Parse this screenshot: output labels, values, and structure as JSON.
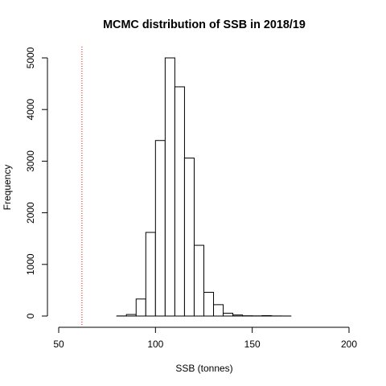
{
  "chart_data": {
    "type": "bar",
    "title": "MCMC distribution of SSB in 2018/19",
    "xlabel": "SSB (tonnes)",
    "ylabel": "Frequency",
    "xlim": [
      50,
      200
    ],
    "ylim": [
      0,
      5000
    ],
    "x_ticks": [
      "50",
      "100",
      "150",
      "200"
    ],
    "y_ticks": [
      "0",
      "1000",
      "2000",
      "3000",
      "4000",
      "5000"
    ],
    "bin_width": 5,
    "bins": [
      {
        "x0": 80,
        "x1": 85,
        "count": 2
      },
      {
        "x0": 85,
        "x1": 90,
        "count": 30
      },
      {
        "x0": 90,
        "x1": 95,
        "count": 330
      },
      {
        "x0": 95,
        "x1": 100,
        "count": 1620
      },
      {
        "x0": 100,
        "x1": 105,
        "count": 3400
      },
      {
        "x0": 105,
        "x1": 110,
        "count": 5000
      },
      {
        "x0": 110,
        "x1": 115,
        "count": 4440
      },
      {
        "x0": 115,
        "x1": 120,
        "count": 3060
      },
      {
        "x0": 120,
        "x1": 125,
        "count": 1370
      },
      {
        "x0": 125,
        "x1": 130,
        "count": 460
      },
      {
        "x0": 130,
        "x1": 135,
        "count": 220
      },
      {
        "x0": 135,
        "x1": 140,
        "count": 55
      },
      {
        "x0": 140,
        "x1": 145,
        "count": 20
      },
      {
        "x0": 145,
        "x1": 150,
        "count": 5
      },
      {
        "x0": 150,
        "x1": 155,
        "count": 3
      },
      {
        "x0": 155,
        "x1": 160,
        "count": 8
      },
      {
        "x0": 160,
        "x1": 165,
        "count": 2
      },
      {
        "x0": 165,
        "x1": 170,
        "count": 1
      }
    ],
    "reference_line": {
      "x": 62,
      "style": "dotted",
      "color": "#ff0000"
    },
    "bar_fill": "#ffffff",
    "bar_stroke": "#000000",
    "grid": false
  }
}
